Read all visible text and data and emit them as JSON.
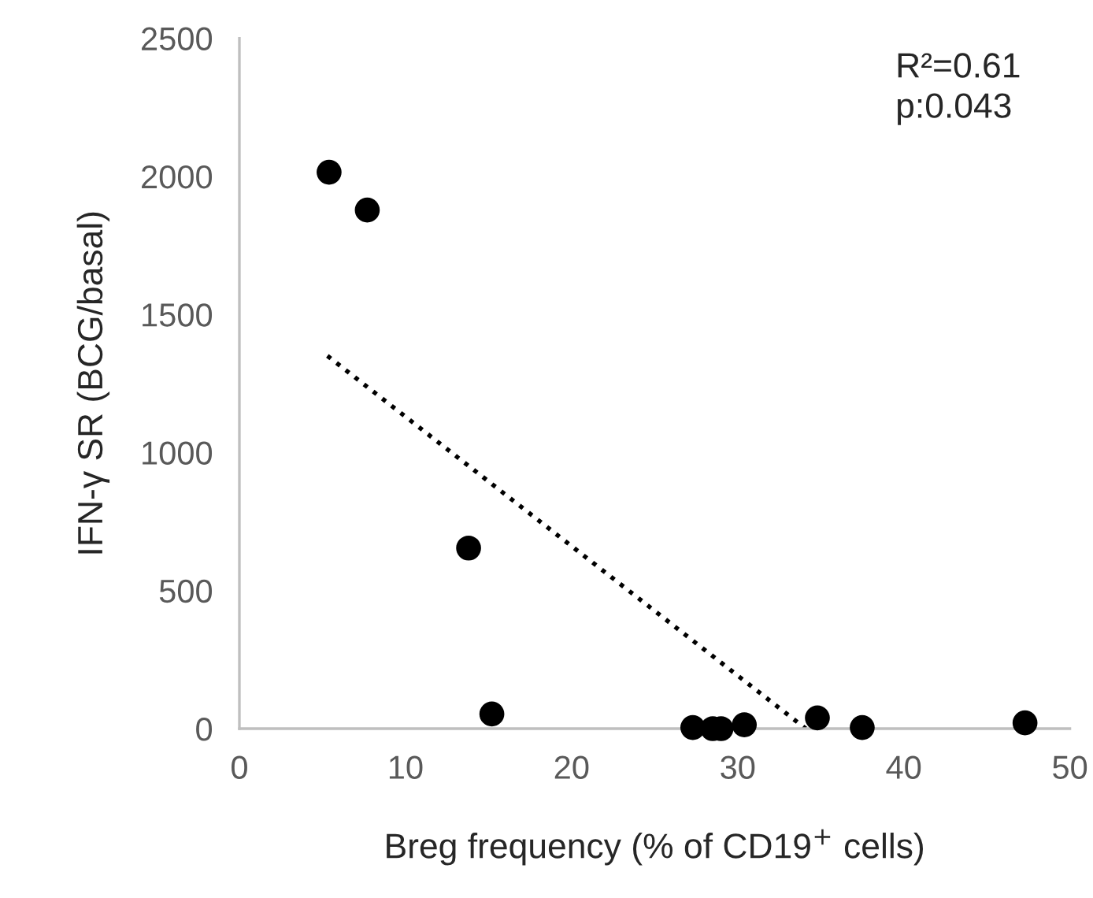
{
  "chart_data": {
    "type": "scatter",
    "xlabel": "Breg frequency (% of CD19$^{+}$ cells)",
    "ylabel": "IFN-γ SR (BCG/basal)",
    "annotations": [
      "R²=0.61\np:0.043"
    ],
    "xlim": [
      0,
      50
    ],
    "xticks": [
      0,
      10,
      20,
      30,
      40,
      50
    ],
    "ylim": [
      0,
      2500
    ],
    "yticks": [
      0,
      500,
      1000,
      1500,
      2000,
      2500
    ],
    "grid": false,
    "legend": false,
    "series": [
      {
        "marker": "circle",
        "color": "#000000",
        "x": [
          5.4,
          7.7,
          13.8,
          15.2,
          27.3,
          28.5,
          29.0,
          30.4,
          34.8,
          37.5,
          47.3
        ],
        "values": [
          2015,
          1878,
          654,
          53,
          4,
          0,
          0,
          14,
          39,
          4,
          21
        ]
      },
      {
        "type": "line",
        "marker": "none",
        "color": "#000000",
        "line_style": "dotted",
        "x": [
          5.3,
          34.1
        ],
        "values": [
          1350,
          0
        ]
      }
    ]
  }
}
